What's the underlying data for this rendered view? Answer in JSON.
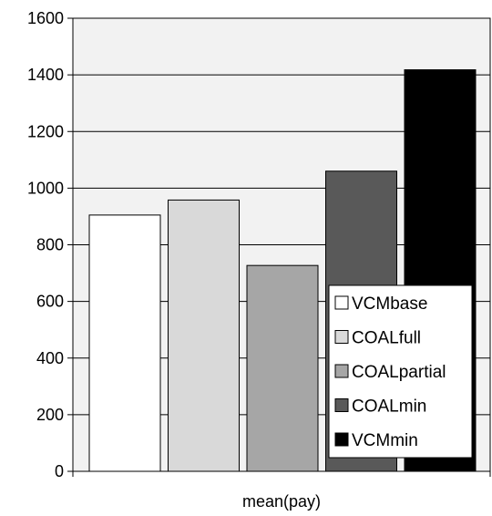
{
  "chart_data": {
    "type": "bar",
    "categories": [
      "mean(pay)"
    ],
    "series": [
      {
        "name": "VCMbase",
        "values": [
          905
        ],
        "color": "#ffffff"
      },
      {
        "name": "COALfull",
        "values": [
          958
        ],
        "color": "#d9d9d9"
      },
      {
        "name": "COALpartial",
        "values": [
          727
        ],
        "color": "#a6a6a6"
      },
      {
        "name": "COALmin",
        "values": [
          1060
        ],
        "color": "#595959"
      },
      {
        "name": "VCMmin",
        "values": [
          1418
        ],
        "color": "#000000"
      }
    ],
    "yticks": [
      "0",
      "200",
      "400",
      "600",
      "800",
      "1000",
      "1200",
      "1400",
      "1600"
    ],
    "ylim": [
      0,
      1600
    ],
    "plot_background": "#f2f2f2",
    "grid": true,
    "legend": "bottom-right inside plot"
  }
}
